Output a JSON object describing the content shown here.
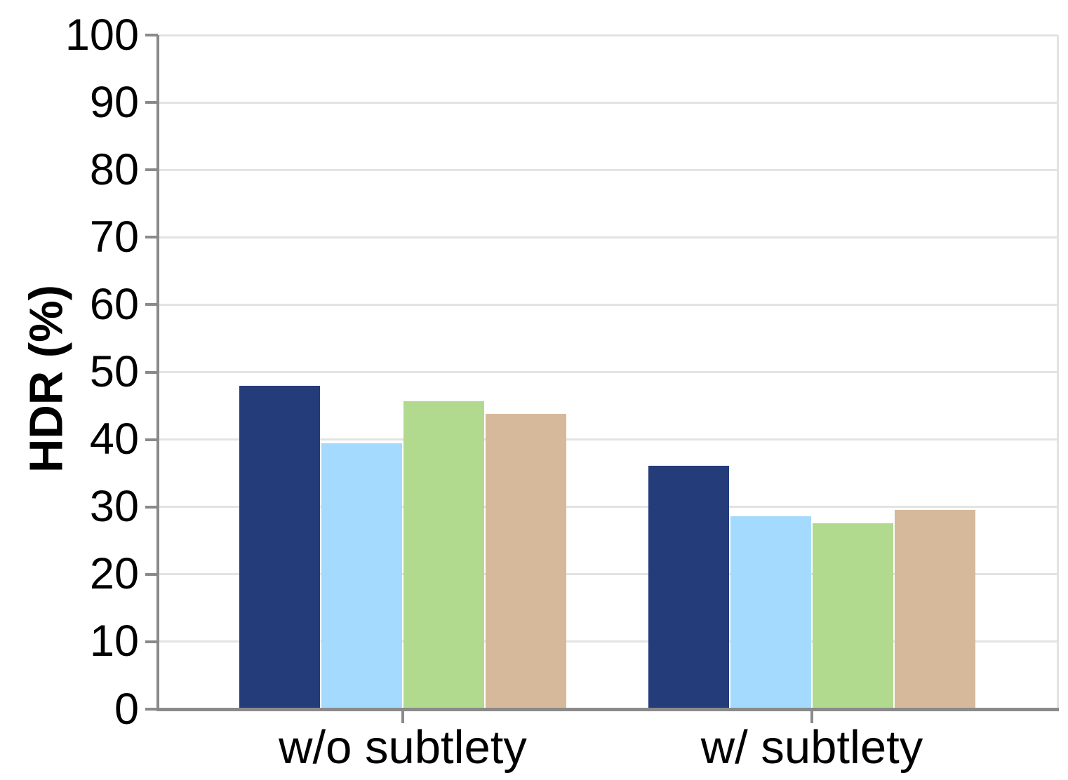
{
  "chart_data": {
    "type": "bar",
    "title": "",
    "xlabel": "",
    "ylabel": "HDR (%)",
    "categories": [
      "w/o subtlety",
      "w/ subtlety"
    ],
    "series": [
      {
        "name": "navy",
        "color": "#253c7b",
        "values": [
          48.0,
          36.1
        ]
      },
      {
        "name": "light-blue",
        "color": "#a3dafd",
        "values": [
          39.4,
          28.6
        ]
      },
      {
        "name": "green",
        "color": "#b1da8e",
        "values": [
          45.7,
          27.6
        ]
      },
      {
        "name": "tan",
        "color": "#d6b89b",
        "values": [
          43.8,
          29.6
        ]
      }
    ],
    "ylim": [
      0,
      100
    ],
    "yticks": [
      0,
      10,
      20,
      30,
      40,
      50,
      60,
      70,
      80,
      90,
      100
    ],
    "grid": true,
    "legend": false,
    "colors": {
      "axis": "#8a8a8a",
      "gridline": "#e3e3e3",
      "text": "#000000",
      "background": "#ffffff"
    }
  }
}
